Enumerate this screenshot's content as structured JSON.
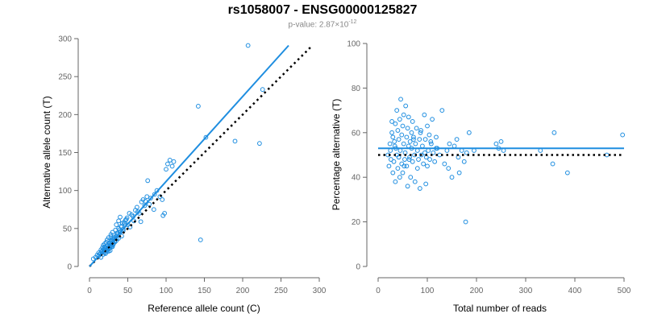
{
  "title": "rs1058007 - ENSG00000125827",
  "subtitle": {
    "prefix": "p-value: 2.87×10",
    "exponent": "-12"
  },
  "colors": {
    "points": "#1f8ee0",
    "fit_line": "#1f8ee0",
    "reference_line": "#000000",
    "axis": "#666666"
  },
  "chart_data": [
    {
      "type": "scatter",
      "title": "",
      "xlabel": "Reference allele count (C)",
      "ylabel": "Alternative allele count (T)",
      "xlim": [
        0,
        300
      ],
      "ylim": [
        0,
        300
      ],
      "xticks": [
        0,
        50,
        100,
        150,
        200,
        250,
        300
      ],
      "yticks": [
        0,
        50,
        100,
        150,
        200,
        250,
        300
      ],
      "grid": false,
      "points": {
        "x": [
          5,
          8,
          10,
          12,
          14,
          15,
          16,
          17,
          18,
          18,
          19,
          20,
          20,
          21,
          22,
          22,
          23,
          24,
          25,
          25,
          26,
          27,
          28,
          28,
          29,
          30,
          30,
          31,
          32,
          33,
          34,
          35,
          35,
          36,
          37,
          38,
          38,
          40,
          40,
          42,
          44,
          45,
          46,
          48,
          50,
          52,
          55,
          58,
          60,
          62,
          65,
          68,
          70,
          72,
          75,
          78,
          80,
          85,
          88,
          92,
          95,
          98,
          100,
          102,
          105,
          108,
          110,
          12,
          14,
          16,
          20,
          24,
          26,
          30,
          32,
          34,
          36,
          40,
          44,
          15,
          18,
          22,
          25,
          28,
          35,
          38,
          42,
          30,
          33,
          20,
          21,
          23,
          26,
          27,
          29,
          31,
          28,
          36,
          39,
          41,
          43,
          47,
          49,
          53,
          57,
          63,
          67,
          73,
          76,
          84,
          96,
          142,
          145,
          152,
          190,
          222,
          207,
          226
        ],
        "y": [
          10,
          12,
          15,
          18,
          16,
          22,
          20,
          25,
          19,
          28,
          23,
          26,
          30,
          24,
          32,
          22,
          35,
          27,
          20,
          38,
          30,
          25,
          33,
          42,
          28,
          36,
          45,
          30,
          38,
          33,
          48,
          40,
          55,
          37,
          44,
          50,
          60,
          46,
          65,
          52,
          49,
          58,
          56,
          62,
          55,
          70,
          68,
          60,
          74,
          78,
          70,
          85,
          88,
          80,
          92,
          82,
          90,
          95,
          100,
          92,
          88,
          70,
          128,
          135,
          140,
          132,
          138,
          14,
          17,
          19,
          24,
          28,
          31,
          34,
          36,
          38,
          42,
          45,
          47,
          12,
          16,
          21,
          23,
          27,
          34,
          37,
          40,
          26,
          32,
          18,
          17,
          20,
          24,
          21,
          26,
          29,
          39,
          44,
          48,
          53,
          57,
          61,
          64,
          52,
          66,
          72,
          59,
          86,
          113,
          75,
          67,
          211,
          35,
          170,
          165,
          162,
          291,
          233
        ]
      },
      "fit_line": {
        "x": [
          0,
          260
        ],
        "y": [
          0,
          291
        ]
      },
      "reference_line": {
        "x": [
          0,
          290
        ],
        "y": [
          0,
          290
        ],
        "style": "dotted"
      }
    },
    {
      "type": "scatter",
      "title": "",
      "xlabel": "Total number of reads",
      "ylabel": "Percentage alternative (T)",
      "xlim": [
        0,
        500
      ],
      "ylim": [
        0,
        100
      ],
      "xticks": [
        0,
        100,
        200,
        300,
        400,
        500
      ],
      "yticks": [
        0,
        20,
        40,
        60,
        80,
        100
      ],
      "grid": false,
      "points": {
        "x": [
          20,
          22,
          24,
          25,
          26,
          28,
          30,
          30,
          32,
          33,
          35,
          35,
          36,
          38,
          38,
          40,
          40,
          42,
          42,
          44,
          45,
          46,
          48,
          48,
          50,
          50,
          52,
          52,
          54,
          55,
          56,
          58,
          58,
          60,
          60,
          62,
          62,
          64,
          65,
          66,
          68,
          68,
          70,
          70,
          72,
          74,
          75,
          76,
          78,
          80,
          80,
          82,
          84,
          85,
          86,
          88,
          90,
          92,
          94,
          95,
          96,
          98,
          100,
          100,
          102,
          104,
          105,
          108,
          110,
          112,
          115,
          118,
          120,
          125,
          130,
          135,
          140,
          145,
          150,
          155,
          160,
          165,
          170,
          175,
          178,
          180,
          185,
          195,
          240,
          245,
          250,
          255,
          330,
          355,
          358,
          385,
          465,
          497,
          28,
          34,
          44,
          53,
          63,
          72,
          87,
          97,
          107,
          118,
          143,
          163
        ],
        "y": [
          50,
          45,
          55,
          52,
          48,
          60,
          42,
          58,
          47,
          56,
          38,
          64,
          53,
          50,
          70,
          44,
          61,
          57,
          49,
          66,
          52,
          75,
          46,
          59,
          42,
          63,
          55,
          68,
          48,
          51,
          72,
          45,
          58,
          36,
          62,
          54,
          67,
          49,
          56,
          40,
          60,
          53,
          65,
          47,
          58,
          50,
          38,
          55,
          62,
          44,
          52,
          48,
          57,
          35,
          60,
          50,
          54,
          46,
          68,
          51,
          57,
          49,
          63,
          45,
          52,
          59,
          48,
          55,
          66,
          51,
          47,
          58,
          53,
          50,
          70,
          46,
          52,
          55,
          40,
          54,
          57,
          42,
          52,
          47,
          20,
          51,
          60,
          52,
          55,
          53,
          56,
          52,
          52,
          46,
          60,
          42,
          50,
          59,
          65,
          54,
          40,
          45,
          48,
          57,
          61,
          37,
          56,
          53,
          44,
          49
        ]
      },
      "fit_line": {
        "x": [
          0,
          500
        ],
        "y": [
          53,
          53
        ]
      },
      "reference_line": {
        "x": [
          0,
          500
        ],
        "y": [
          50,
          50
        ],
        "style": "dotted"
      }
    }
  ]
}
